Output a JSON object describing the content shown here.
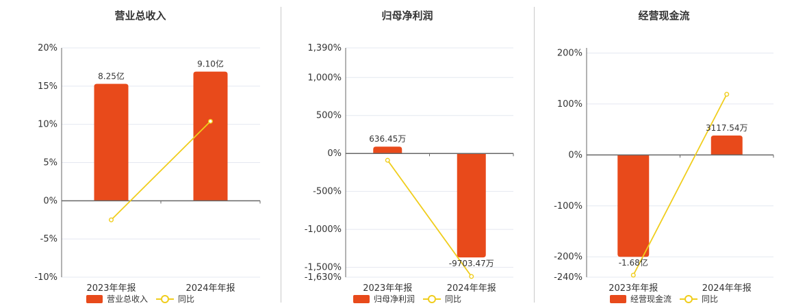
{
  "colors": {
    "bar": "#e84a1b",
    "line": "#f0cd1c",
    "grid": "#e4e8f0",
    "axis": "#666666"
  },
  "legend_line_label": "同比",
  "chart_data": [
    {
      "type": "bar",
      "title": "营业总收入",
      "categories": [
        "2023年年报",
        "2024年年报"
      ],
      "y_axis": {
        "min": -10,
        "max": 20,
        "ticks": [
          -10,
          -5,
          0,
          5,
          10,
          15,
          20
        ],
        "tick_labels": [
          "-10%",
          "-5%",
          "0%",
          "5%",
          "10%",
          "15%",
          "20%"
        ]
      },
      "series": [
        {
          "name": "营业总收入",
          "kind": "bar",
          "values": [
            15.3,
            16.9
          ],
          "labels": [
            "8.25亿",
            "9.10亿"
          ]
        },
        {
          "name": "同比",
          "kind": "line",
          "values": [
            -2.5,
            10.4
          ]
        }
      ]
    },
    {
      "type": "bar",
      "title": "归母净利润",
      "categories": [
        "2023年年报",
        "2024年年报"
      ],
      "y_axis": {
        "min": -1630,
        "max": 1390,
        "ticks": [
          -1630,
          -1500,
          -1000,
          -500,
          0,
          500,
          1000,
          1390
        ],
        "tick_labels": [
          "-1,630%",
          "-1,500%",
          "-1,000%",
          "-500%",
          "0%",
          "500%",
          "1,000%",
          "1,390%"
        ]
      },
      "series": [
        {
          "name": "归母净利润",
          "kind": "bar",
          "values": [
            90,
            -1370
          ],
          "labels": [
            "636.45万",
            "-9703.47万"
          ]
        },
        {
          "name": "同比",
          "kind": "line",
          "values": [
            -90,
            -1620
          ]
        }
      ]
    },
    {
      "type": "bar",
      "title": "经营现金流",
      "categories": [
        "2023年年报",
        "2024年年报"
      ],
      "y_axis": {
        "min": -240,
        "max": 210,
        "ticks": [
          -240,
          -200,
          -100,
          0,
          100,
          200
        ],
        "tick_labels": [
          "-240%",
          "-200%",
          "-100%",
          "0%",
          "100%",
          "200%"
        ]
      },
      "series": [
        {
          "name": "经营现金流",
          "kind": "bar",
          "values": [
            -200,
            38
          ],
          "labels": [
            "-1.68亿",
            "3117.54万"
          ]
        },
        {
          "name": "同比",
          "kind": "line",
          "values": [
            -236,
            119
          ]
        }
      ]
    }
  ]
}
